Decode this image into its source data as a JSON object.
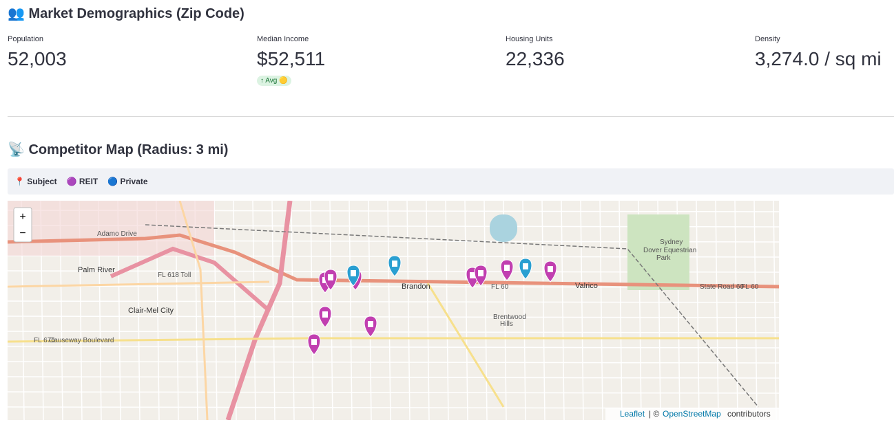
{
  "header": {
    "title": "👥 Market Demographics (Zip Code)"
  },
  "metrics": [
    {
      "label": "Population",
      "value": "52,003"
    },
    {
      "label": "Median Income",
      "value": "$52,511",
      "delta": "↑ Avg 🟡"
    },
    {
      "label": "Housing Units",
      "value": "22,336"
    },
    {
      "label": "Density",
      "value": "3,274.0 / sq mi"
    }
  ],
  "map_section": {
    "title": "📡 Competitor Map (Radius: 3 mi)",
    "legend": [
      "📍 Subject",
      "🟣 REIT",
      "🔵 Private"
    ],
    "zoom": [
      "+",
      "−"
    ],
    "labels": [
      "Palm River",
      "Clair-Mel City",
      "Brandon",
      "Valrico",
      "Sydney",
      "Dover Equestrian",
      "Park",
      "Brentwood",
      "Hills",
      "FL 60",
      "FL 60",
      "FL 618 Toll",
      "FL 676",
      "Causeway Boulevard",
      "Adamo Drive",
      "State Road 60"
    ],
    "attribution": [
      "Leaflet",
      "| ©",
      "OpenStreetMap",
      "contributors"
    ]
  }
}
